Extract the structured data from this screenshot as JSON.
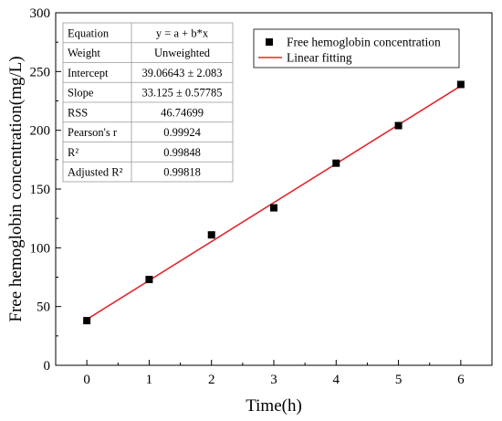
{
  "chart_data": {
    "type": "scatter",
    "xlabel": "Time(h)",
    "ylabel": "Free hemoglobin concentration(mg/L)",
    "xlim": [
      -0.5,
      6.5
    ],
    "ylim": [
      0,
      300
    ],
    "x_ticks": [
      0,
      1,
      2,
      3,
      4,
      5,
      6
    ],
    "y_ticks": [
      0,
      50,
      100,
      150,
      200,
      250,
      300
    ],
    "grid": false,
    "legend_position": "top-right",
    "series": [
      {
        "name": "Free hemoglobin concentration",
        "kind": "scatter",
        "marker": "square",
        "color": "#000000",
        "x": [
          0,
          1,
          2,
          3,
          4,
          5,
          6
        ],
        "y": [
          38,
          73,
          111,
          134,
          172,
          204,
          239
        ]
      },
      {
        "name": "Linear fitting",
        "kind": "line",
        "color": "#e3262b",
        "intercept": 39.06643,
        "slope": 33.125
      }
    ],
    "stats_table": [
      {
        "label": "Equation",
        "value": "y = a + b*x"
      },
      {
        "label": "Weight",
        "value": "Unweighted"
      },
      {
        "label": "Intercept",
        "value": "39.06643 ± 2.083"
      },
      {
        "label": "Slope",
        "value": "33.125 ± 0.57785"
      },
      {
        "label": "RSS",
        "value": "46.74699"
      },
      {
        "label": "Pearson's r",
        "value": "0.99924"
      },
      {
        "label": "R²",
        "value": "0.99848"
      },
      {
        "label": "Adjusted R²",
        "value": "0.99818"
      }
    ]
  }
}
